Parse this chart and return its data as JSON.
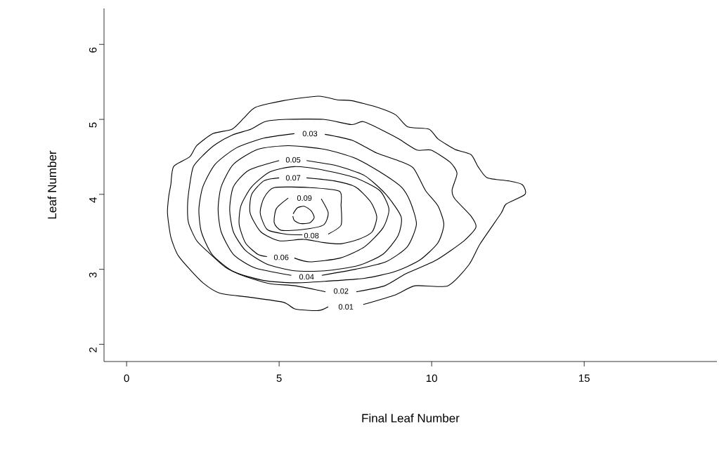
{
  "chart_data": {
    "type": "line",
    "xlabel": "Final Leaf Number",
    "ylabel": "Leaf Number",
    "xlim": [
      -0.74,
      19.35
    ],
    "ylim": [
      1.77,
      6.48
    ],
    "xticks": [
      0,
      5,
      10,
      15
    ],
    "yticks": [
      2,
      3,
      4,
      5,
      6
    ],
    "series": [
      {
        "color": "#000000",
        "x": [
          7.76,
          8.82,
          9.45,
          10.53,
          11.22,
          11.59,
          12.28,
          12.44,
          13.06,
          12.97,
          12.51,
          11.82,
          11.52,
          11.29,
          10.76,
          10.21,
          9.91,
          9.22,
          8.82,
          8.23,
          7.37,
          6.91,
          6.29,
          5.14,
          4.22,
          3.85,
          3.46,
          2.83,
          2.3,
          2.07,
          1.54,
          1.45,
          1.38,
          1.34,
          1.45,
          1.68,
          2.07,
          2.53,
          3.06,
          3.99,
          5.14,
          5.53,
          6.29,
          6.61
        ],
        "values": [
          2.53,
          2.66,
          2.78,
          2.78,
          3.06,
          3.34,
          3.75,
          3.87,
          4.0,
          4.13,
          4.18,
          4.22,
          4.37,
          4.53,
          4.6,
          4.74,
          4.87,
          4.9,
          5.06,
          5.16,
          5.25,
          5.26,
          5.31,
          5.25,
          5.16,
          5.02,
          4.87,
          4.81,
          4.65,
          4.5,
          4.37,
          4.13,
          3.97,
          3.75,
          3.43,
          3.19,
          3.0,
          2.81,
          2.68,
          2.63,
          2.56,
          2.47,
          2.45,
          2.5
        ]
      },
      {
        "color": "#000000",
        "x": [
          7.53,
          8.46,
          9.15,
          10.14,
          11.06,
          11.45,
          11.29,
          10.76,
          10.67,
          10.83,
          10.6,
          9.98,
          9.52,
          8.92,
          8.46,
          7.76,
          7.37,
          6.45,
          5.23,
          4.54,
          4.08,
          3.46,
          2.93,
          2.53,
          2.19,
          2.07,
          2.0,
          2.03,
          2.3,
          2.7,
          3.23,
          3.85,
          4.68,
          5.53,
          6.29,
          6.52
        ],
        "values": [
          2.7,
          2.78,
          2.94,
          3.12,
          3.38,
          3.56,
          3.71,
          3.94,
          4.06,
          4.28,
          4.43,
          4.59,
          4.59,
          4.74,
          4.84,
          4.97,
          4.93,
          5.0,
          5.0,
          4.97,
          4.87,
          4.79,
          4.67,
          4.53,
          4.37,
          4.13,
          3.87,
          3.62,
          3.38,
          3.22,
          3.03,
          2.91,
          2.81,
          2.78,
          2.72,
          2.7
        ]
      },
      {
        "color": "#000000",
        "x": [
          6.5,
          7.4,
          8.2,
          8.9,
          9.4,
          9.8,
          10.2,
          10.4,
          10.2,
          9.6,
          8.8,
          7.8,
          6.5,
          5.5,
          4.5,
          3.5,
          2.8,
          2.45,
          2.37,
          2.5,
          2.9,
          3.6,
          4.5,
          5.5
        ],
        "values": [
          4.8,
          4.72,
          4.55,
          4.45,
          4.35,
          4.05,
          3.85,
          3.6,
          3.35,
          3.12,
          2.97,
          2.88,
          2.84,
          2.82,
          2.85,
          2.97,
          3.2,
          3.5,
          3.8,
          4.1,
          4.4,
          4.62,
          4.75,
          4.81
        ]
      },
      {
        "color": "#000000",
        "x": [
          6.4,
          7.5,
          8.5,
          9.2,
          9.5,
          9.3,
          9.0,
          8.3,
          7.5,
          6.5,
          5.3,
          4.3,
          3.5,
          3.1,
          3.0,
          3.1,
          3.5,
          4.2,
          5.4
        ],
        "values": [
          2.92,
          3.0,
          3.1,
          3.3,
          3.6,
          3.9,
          4.1,
          4.3,
          4.48,
          4.6,
          4.65,
          4.6,
          4.4,
          4.1,
          3.8,
          3.5,
          3.2,
          3.02,
          2.92
        ]
      },
      {
        "color": "#000000",
        "x": [
          5.9,
          6.9,
          7.8,
          8.5,
          9.0,
          8.9,
          8.4,
          7.6,
          6.5,
          5.5,
          4.6,
          3.9,
          3.5,
          3.38,
          3.5,
          4.0,
          5.0
        ],
        "values": [
          4.45,
          4.38,
          4.25,
          4.0,
          3.7,
          3.45,
          3.2,
          3.05,
          2.98,
          2.98,
          3.07,
          3.25,
          3.5,
          3.8,
          4.1,
          4.32,
          4.45
        ]
      },
      {
        "color": "#000000",
        "x": [
          5.5,
          6.0,
          7.0,
          7.8,
          8.4,
          8.6,
          8.3,
          7.5,
          6.5,
          5.5,
          4.7,
          4.1,
          3.75,
          3.69,
          3.9,
          4.3,
          4.6
        ],
        "values": [
          3.15,
          3.1,
          3.15,
          3.3,
          3.55,
          3.8,
          4.05,
          4.22,
          4.32,
          4.37,
          4.3,
          4.1,
          3.85,
          3.6,
          3.35,
          3.2,
          3.17
        ]
      },
      {
        "color": "#000000",
        "x": [
          5.9,
          6.8,
          7.5,
          8.0,
          8.2,
          8.05,
          7.6,
          7.0,
          6.4,
          5.8,
          5.0,
          4.4,
          4.05,
          4.1,
          4.5,
          5.0
        ],
        "values": [
          4.22,
          4.18,
          4.1,
          3.9,
          3.7,
          3.5,
          3.4,
          3.34,
          3.36,
          3.4,
          3.38,
          3.5,
          3.75,
          4.0,
          4.18,
          4.22
        ]
      },
      {
        "color": "#000000",
        "x": [
          6.61,
          7.03,
          7.03,
          6.98,
          6.0,
          4.84,
          4.5,
          4.38,
          4.61,
          5.2,
          5.76
        ],
        "values": [
          3.47,
          3.59,
          3.85,
          4.04,
          4.09,
          4.09,
          3.95,
          3.75,
          3.53,
          3.47,
          3.46
        ]
      },
      {
        "color": "#000000",
        "x": [
          5.3,
          4.91,
          4.84,
          5.07,
          5.76,
          6.45,
          6.61,
          6.38
        ],
        "values": [
          3.95,
          3.81,
          3.62,
          3.52,
          3.53,
          3.59,
          3.75,
          3.94
        ]
      },
      {
        "color": "#000000",
        "x": [
          5.46,
          5.6,
          5.83,
          6.05,
          6.15,
          6.0,
          5.7,
          5.5,
          5.45
        ],
        "values": [
          3.74,
          3.82,
          3.84,
          3.78,
          3.69,
          3.62,
          3.61,
          3.65,
          3.71
        ]
      }
    ],
    "annotations": [
      {
        "text": "0.01",
        "x": 7.19,
        "y": 2.5
      },
      {
        "text": "0.02",
        "x": 7.03,
        "y": 2.71
      },
      {
        "text": "0.03",
        "x": 6.01,
        "y": 4.81
      },
      {
        "text": "0.04",
        "x": 5.9,
        "y": 2.9
      },
      {
        "text": "0.05",
        "x": 5.46,
        "y": 4.46
      },
      {
        "text": "0.06",
        "x": 5.07,
        "y": 3.16
      },
      {
        "text": "0.07",
        "x": 5.46,
        "y": 4.22
      },
      {
        "text": "0.08",
        "x": 6.06,
        "y": 3.45
      },
      {
        "text": "0.09",
        "x": 5.83,
        "y": 3.95
      }
    ]
  }
}
